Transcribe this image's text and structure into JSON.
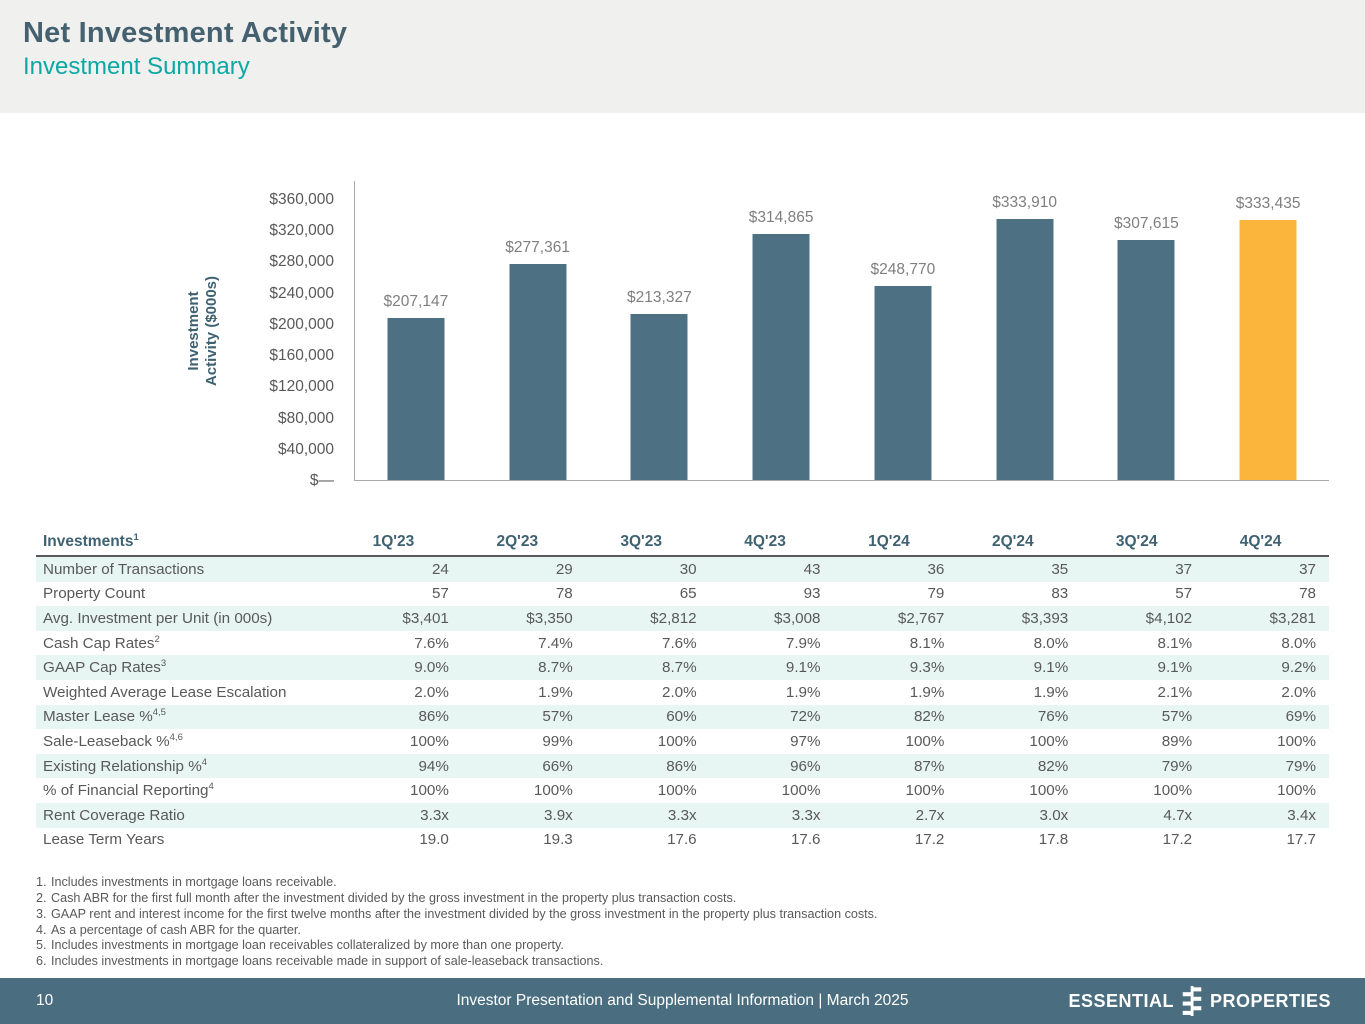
{
  "colors": {
    "title": "#45616f",
    "subtitle_teal": "#0ba8a4",
    "bar_blue": "#4d7183",
    "bar_highlight_yellow": "#fbb53c",
    "table_stripe": "#e7f5f3",
    "footer_bar": "#4a6e7f"
  },
  "header": {
    "title": "Net Investment Activity",
    "subtitle": "Investment Summary"
  },
  "chart_data": {
    "type": "bar",
    "title": "",
    "xlabel": "",
    "ylabel_line1": "Investment",
    "ylabel_line2": "Activity ($000s)",
    "categories": [
      "1Q'23",
      "2Q'23",
      "3Q'23",
      "4Q'23",
      "1Q'24",
      "2Q'24",
      "3Q'24",
      "4Q'24"
    ],
    "values": [
      207147,
      277361,
      213327,
      314865,
      248770,
      333910,
      307615,
      333435
    ],
    "value_labels": [
      "$207,147",
      "$277,361",
      "$213,327",
      "$314,865",
      "$248,770",
      "$333,910",
      "$307,615",
      "$333,435"
    ],
    "bar_colors": [
      "#4d7183",
      "#4d7183",
      "#4d7183",
      "#4d7183",
      "#4d7183",
      "#4d7183",
      "#4d7183",
      "#fbb53c"
    ],
    "ylim": [
      0,
      360000
    ],
    "ytick_step": 40000,
    "ytick_labels": [
      "$360,000",
      "$320,000",
      "$280,000",
      "$240,000",
      "$200,000",
      "$160,000",
      "$120,000",
      "$80,000",
      "$40,000",
      "$—"
    ],
    "grid": false,
    "legend": false
  },
  "table": {
    "header": {
      "label": "Investments",
      "sup": "1",
      "columns": [
        "1Q'23",
        "2Q'23",
        "3Q'23",
        "4Q'23",
        "1Q'24",
        "2Q'24",
        "3Q'24",
        "4Q'24"
      ]
    },
    "rows": [
      {
        "label": "Number of Transactions",
        "sup": "",
        "values": [
          "24",
          "29",
          "30",
          "43",
          "36",
          "35",
          "37",
          "37"
        ]
      },
      {
        "label": "Property Count",
        "sup": "",
        "values": [
          "57",
          "78",
          "65",
          "93",
          "79",
          "83",
          "57",
          "78"
        ]
      },
      {
        "label": "Avg. Investment per Unit (in 000s)",
        "sup": "",
        "values": [
          "$3,401",
          "$3,350",
          "$2,812",
          "$3,008",
          "$2,767",
          "$3,393",
          "$4,102",
          "$3,281"
        ]
      },
      {
        "label": "Cash Cap Rates",
        "sup": "2",
        "values": [
          "7.6%",
          "7.4%",
          "7.6%",
          "7.9%",
          "8.1%",
          "8.0%",
          "8.1%",
          "8.0%"
        ]
      },
      {
        "label": "GAAP Cap Rates",
        "sup": "3",
        "values": [
          "9.0%",
          "8.7%",
          "8.7%",
          "9.1%",
          "9.3%",
          "9.1%",
          "9.1%",
          "9.2%"
        ]
      },
      {
        "label": "Weighted Average Lease Escalation",
        "sup": "",
        "values": [
          "2.0%",
          "1.9%",
          "2.0%",
          "1.9%",
          "1.9%",
          "1.9%",
          "2.1%",
          "2.0%"
        ]
      },
      {
        "label": "Master Lease %",
        "sup": "4,5",
        "values": [
          "86%",
          "57%",
          "60%",
          "72%",
          "82%",
          "76%",
          "57%",
          "69%"
        ]
      },
      {
        "label": "Sale-Leaseback %",
        "sup": "4,6",
        "values": [
          "100%",
          "99%",
          "100%",
          "97%",
          "100%",
          "100%",
          "89%",
          "100%"
        ]
      },
      {
        "label": "Existing Relationship %",
        "sup": "4",
        "values": [
          "94%",
          "66%",
          "86%",
          "96%",
          "87%",
          "82%",
          "79%",
          "79%"
        ]
      },
      {
        "label": "% of Financial Reporting",
        "sup": "4",
        "values": [
          "100%",
          "100%",
          "100%",
          "100%",
          "100%",
          "100%",
          "100%",
          "100%"
        ]
      },
      {
        "label": "Rent Coverage Ratio",
        "sup": "",
        "values": [
          "3.3x",
          "3.9x",
          "3.3x",
          "3.3x",
          "2.7x",
          "3.0x",
          "4.7x",
          "3.4x"
        ]
      },
      {
        "label": "Lease Term Years",
        "sup": "",
        "values": [
          "19.0",
          "19.3",
          "17.6",
          "17.6",
          "17.2",
          "17.8",
          "17.2",
          "17.7"
        ]
      }
    ]
  },
  "footnotes": [
    {
      "num": "1.",
      "text": "Includes investments in mortgage loans receivable."
    },
    {
      "num": "2.",
      "text": "Cash ABR for the first full month after the investment divided by the gross investment in the property plus transaction costs."
    },
    {
      "num": "3.",
      "text": "GAAP rent and interest income for the first twelve months after the investment divided by the gross investment in the property plus transaction costs."
    },
    {
      "num": "4.",
      "text": "As a percentage of cash ABR for the quarter."
    },
    {
      "num": "5.",
      "text": "Includes investments in mortgage loan receivables collateralized by more than one property."
    },
    {
      "num": "6.",
      "text": "Includes investments in mortgage loans receivable made in support of sale-leaseback transactions."
    }
  ],
  "footer": {
    "page_number": "10",
    "center_text": "Investor Presentation and Supplemental Information |  March 2025",
    "logo_left": "ESSENTIAL",
    "logo_right": "PROPERTIES"
  }
}
